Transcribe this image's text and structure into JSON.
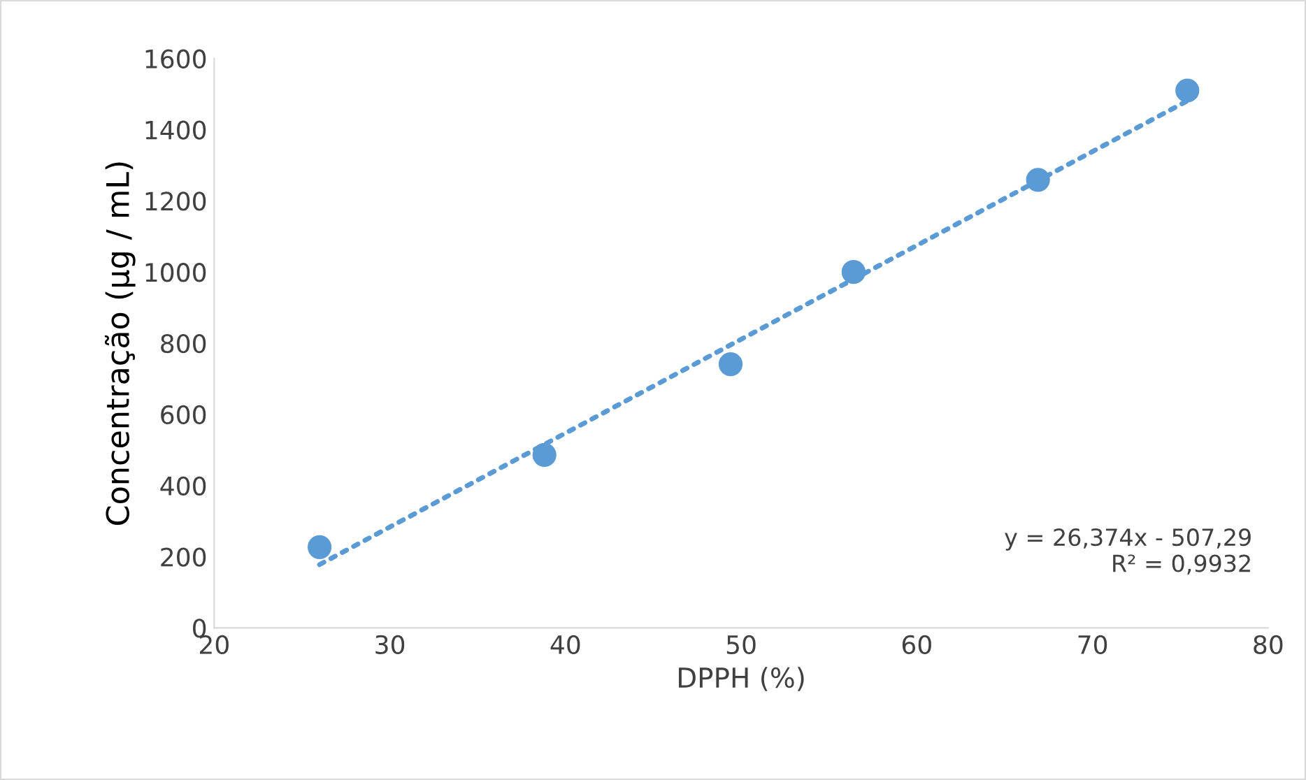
{
  "chart_data": {
    "type": "scatter",
    "xlabel": "DPPH (%)",
    "ylabel": "Concentração (µg / mL)",
    "xlim": [
      20,
      80
    ],
    "xticks": [
      20,
      30,
      40,
      50,
      60,
      70,
      80
    ],
    "ylim": [
      0,
      1600
    ],
    "yticks": [
      0,
      200,
      400,
      600,
      800,
      1000,
      1200,
      1400,
      1600
    ],
    "grid": false,
    "legend": false,
    "series": [
      {
        "color": "#5b9bd5",
        "marker": "circle",
        "x": [
          26,
          38.8,
          49.4,
          56.4,
          66.9,
          75.4
        ],
        "values": [
          227,
          486,
          741,
          1000,
          1259,
          1510
        ]
      },
      {
        "type": "line",
        "color": "#5b9bd5",
        "marker": "none",
        "line_style": "dotted",
        "x": [
          26,
          75.4
        ],
        "values": [
          178,
          1481
        ]
      }
    ],
    "annotations": [
      "y = 26,374x - 507,29\nR² = 0,9932"
    ]
  }
}
